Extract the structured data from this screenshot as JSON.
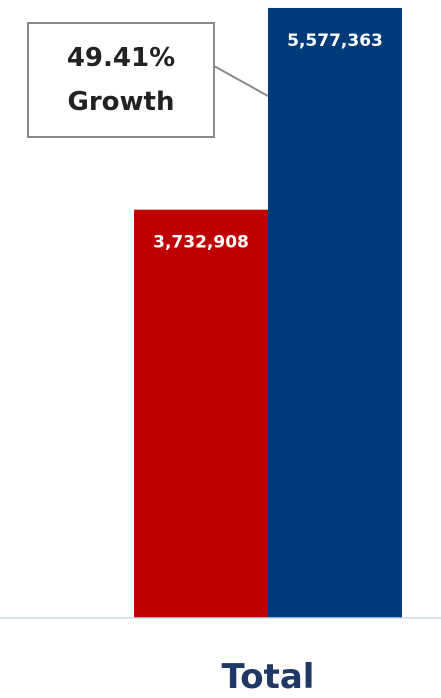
{
  "chart_data": {
    "type": "bar",
    "categories": [
      "Total"
    ],
    "series": [
      {
        "values": [
          3732908
        ],
        "color": "#c00000"
      },
      {
        "values": [
          5577363
        ],
        "color": "#003a7a"
      }
    ],
    "data_labels": [
      "3,732,908",
      "5,577,363"
    ],
    "annotation": {
      "line1": "49.41%",
      "line2": "Growth"
    },
    "ylim": [
      0,
      5650000
    ],
    "grid": false,
    "legend": "none"
  }
}
